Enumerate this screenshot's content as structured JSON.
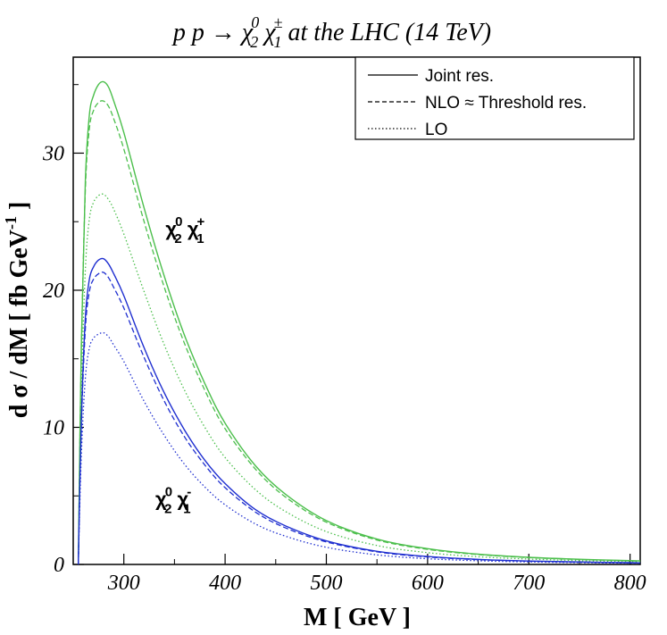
{
  "chart_data": {
    "type": "line",
    "title": {
      "prefix": "p p  → ",
      "p1": "χ",
      "p1_sup": "0",
      "p1_sub": "2",
      "p2": " χ",
      "p2_sup": "±",
      "p2_sub": "1",
      "suffix": " at the LHC (14 TeV)"
    },
    "xlabel": "M [ GeV ]",
    "ylabel": {
      "main": "d σ / dM [ fb GeV",
      "sup": "-1",
      "end": " ]"
    },
    "xlim": [
      250,
      810
    ],
    "ylim": [
      0,
      37
    ],
    "xticks": [
      300,
      400,
      500,
      600,
      700,
      800
    ],
    "yticks": [
      0,
      10,
      20,
      30
    ],
    "grid": false,
    "legend": {
      "placement": "top-right",
      "entries": [
        {
          "label": "Joint res.",
          "style": "solid"
        },
        {
          "label": "NLO ≈ Threshold res.",
          "style": "dashed"
        },
        {
          "label": "LO",
          "style": "dotted"
        }
      ]
    },
    "annotations": [
      {
        "label": "χ",
        "sup": "0",
        "sub": "2",
        "label2": " χ",
        "sup2": "+",
        "sub2": "1",
        "x": 350,
        "y": 24.5
      },
      {
        "label": "χ",
        "sup": "0",
        "sub": "2",
        "label2": " χ",
        "sup2": "-",
        "sub2": "1",
        "x": 340,
        "y": 4.8
      }
    ],
    "colors": {
      "plus": "#4cbf4c",
      "minus": "#1f2fd0",
      "axis": "#000000"
    },
    "x": [
      255,
      258,
      262,
      266,
      270,
      275,
      280,
      285,
      290,
      300,
      320,
      340,
      360,
      380,
      400,
      430,
      460,
      500,
      550,
      600,
      650,
      700,
      750,
      800,
      810
    ],
    "series": [
      {
        "group": "plus",
        "style": "solid",
        "values": [
          0,
          16,
          28,
          32.8,
          34.2,
          35.0,
          35.2,
          34.8,
          33.8,
          31.5,
          26.0,
          21.0,
          16.7,
          13.2,
          10.3,
          7.2,
          5.1,
          3.2,
          1.85,
          1.15,
          0.75,
          0.52,
          0.38,
          0.28,
          0.26
        ]
      },
      {
        "group": "plus",
        "style": "dashed",
        "values": [
          0,
          15.5,
          27.3,
          31.8,
          33.1,
          33.7,
          33.8,
          33.4,
          32.5,
          30.3,
          25.0,
          20.2,
          16.1,
          12.7,
          9.9,
          6.95,
          4.9,
          3.08,
          1.78,
          1.1,
          0.72,
          0.5,
          0.36,
          0.27,
          0.25
        ]
      },
      {
        "group": "plus",
        "style": "dotted",
        "values": [
          0,
          12.5,
          21.5,
          25.2,
          26.4,
          26.9,
          27.0,
          26.6,
          25.9,
          24.1,
          19.9,
          16.0,
          12.7,
          10.0,
          7.8,
          5.45,
          3.85,
          2.4,
          1.38,
          0.86,
          0.56,
          0.39,
          0.28,
          0.21,
          0.2
        ]
      },
      {
        "group": "minus",
        "style": "solid",
        "values": [
          0,
          10.5,
          18.0,
          20.8,
          21.7,
          22.2,
          22.3,
          21.9,
          21.2,
          19.6,
          15.8,
          12.5,
          9.8,
          7.6,
          5.9,
          4.0,
          2.8,
          1.72,
          0.96,
          0.58,
          0.37,
          0.25,
          0.18,
          0.13,
          0.12
        ]
      },
      {
        "group": "minus",
        "style": "dashed",
        "values": [
          0,
          10.0,
          17.2,
          19.9,
          20.8,
          21.2,
          21.3,
          20.9,
          20.2,
          18.7,
          15.1,
          11.9,
          9.3,
          7.25,
          5.6,
          3.82,
          2.66,
          1.64,
          0.92,
          0.55,
          0.35,
          0.24,
          0.17,
          0.12,
          0.11
        ]
      },
      {
        "group": "minus",
        "style": "dotted",
        "values": [
          0,
          8.0,
          13.6,
          15.8,
          16.5,
          16.8,
          16.9,
          16.6,
          16.0,
          14.8,
          11.9,
          9.4,
          7.3,
          5.65,
          4.35,
          2.95,
          2.05,
          1.25,
          0.7,
          0.42,
          0.27,
          0.18,
          0.13,
          0.09,
          0.085
        ]
      }
    ]
  }
}
